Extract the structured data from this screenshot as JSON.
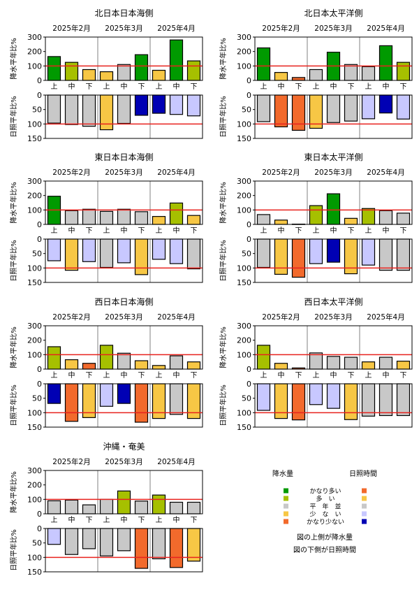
{
  "months": [
    "2025年2月",
    "2025年3月",
    "2025年4月"
  ],
  "dekads": [
    "上",
    "中",
    "下",
    "上",
    "中",
    "下",
    "上",
    "中",
    "下"
  ],
  "labels": {
    "precip_axis": "降水平年比%",
    "sun_axis": "日照平年比%"
  },
  "colors": {
    "reference_line": "#e8231e",
    "divider": "#808080",
    "bar_stroke": "#000000",
    "category_colors": {
      "much_above": "#009a00",
      "above": "#a6c000",
      "normal": "#c8c8c8",
      "below": "#f7c745",
      "much_below": "#f26a2c",
      "sun_above": "#c8c8ff",
      "sun_much_above": "#0000b4"
    }
  },
  "legend": {
    "precip_title": "降水量",
    "sun_title": "日照時間",
    "items": [
      {
        "label": "かなり多い",
        "precip_color": "#009a00",
        "sun_color": "#f26a2c"
      },
      {
        "label": "多　い",
        "precip_color": "#a6c000",
        "sun_color": "#f7c745"
      },
      {
        "label": "平　年　並",
        "precip_color": "#c8c8c8",
        "sun_color": "#c8c8c8"
      },
      {
        "label": "少　な　い",
        "precip_color": "#f7c745",
        "sun_color": "#c8c8ff"
      },
      {
        "label": "かなり少ない",
        "precip_color": "#f26a2c",
        "sun_color": "#0000b4"
      }
    ],
    "note_top": "図の上側が降水量",
    "note_bottom": "図の下側が日照時間"
  },
  "chart_data": [
    {
      "type": "bar",
      "title": "北日本日本海側",
      "precip": {
        "ylim": [
          0,
          300
        ],
        "ticks": [
          0,
          100,
          200,
          300
        ],
        "reference": 100,
        "values": [
          165,
          125,
          75,
          60,
          110,
          178,
          70,
          280,
          135
        ],
        "colors": [
          "#009a00",
          "#a6c000",
          "#f7c745",
          "#f7c745",
          "#c8c8c8",
          "#009a00",
          "#f7c745",
          "#009a00",
          "#a6c000"
        ]
      },
      "sun": {
        "ylim": [
          0,
          150
        ],
        "ticks": [
          0,
          50,
          100,
          150
        ],
        "reference": 100,
        "inverted": true,
        "values": [
          97,
          102,
          108,
          120,
          98,
          70,
          63,
          67,
          72
        ],
        "colors": [
          "#c8c8c8",
          "#c8c8c8",
          "#c8c8c8",
          "#f7c745",
          "#c8c8c8",
          "#0000b4",
          "#0000b4",
          "#c8c8ff",
          "#c8c8ff"
        ]
      }
    },
    {
      "type": "bar",
      "title": "北日本太平洋側",
      "precip": {
        "ylim": [
          0,
          300
        ],
        "ticks": [
          0,
          100,
          200,
          300
        ],
        "reference": 100,
        "values": [
          225,
          55,
          20,
          75,
          195,
          110,
          95,
          240,
          125
        ],
        "colors": [
          "#009a00",
          "#f7c745",
          "#f26a2c",
          "#c8c8c8",
          "#009a00",
          "#c8c8c8",
          "#c8c8c8",
          "#009a00",
          "#a6c000"
        ]
      },
      "sun": {
        "ylim": [
          0,
          150
        ],
        "ticks": [
          0,
          50,
          100,
          150
        ],
        "reference": 100,
        "inverted": true,
        "values": [
          92,
          110,
          122,
          115,
          95,
          90,
          82,
          62,
          83
        ],
        "colors": [
          "#c8c8c8",
          "#f26a2c",
          "#f26a2c",
          "#f7c745",
          "#c8c8c8",
          "#c8c8c8",
          "#c8c8ff",
          "#0000b4",
          "#c8c8ff"
        ]
      }
    },
    {
      "type": "bar",
      "title": "東日本日本海側",
      "precip": {
        "ylim": [
          0,
          300
        ],
        "ticks": [
          0,
          100,
          200,
          300
        ],
        "reference": 100,
        "values": [
          195,
          95,
          105,
          90,
          105,
          88,
          55,
          148,
          62
        ],
        "colors": [
          "#009a00",
          "#c8c8c8",
          "#c8c8c8",
          "#c8c8c8",
          "#c8c8c8",
          "#c8c8c8",
          "#f7c745",
          "#a6c000",
          "#f7c745"
        ]
      },
      "sun": {
        "ylim": [
          0,
          150
        ],
        "ticks": [
          0,
          50,
          100,
          150
        ],
        "reference": 100,
        "inverted": true,
        "values": [
          75,
          108,
          78,
          98,
          82,
          123,
          70,
          85,
          103
        ],
        "colors": [
          "#c8c8ff",
          "#f7c745",
          "#c8c8ff",
          "#c8c8c8",
          "#c8c8ff",
          "#f7c745",
          "#c8c8ff",
          "#c8c8ff",
          "#c8c8c8"
        ]
      }
    },
    {
      "type": "bar",
      "title": "東日本太平洋側",
      "precip": {
        "ylim": [
          0,
          300
        ],
        "ticks": [
          0,
          100,
          200,
          300
        ],
        "reference": 100,
        "values": [
          68,
          30,
          2,
          130,
          212,
          42,
          110,
          95,
          78
        ],
        "colors": [
          "#c8c8c8",
          "#f7c745",
          "#f26a2c",
          "#a6c000",
          "#009a00",
          "#f7c745",
          "#a6c000",
          "#c8c8c8",
          "#c8c8c8"
        ]
      },
      "sun": {
        "ylim": [
          0,
          150
        ],
        "ticks": [
          0,
          50,
          100,
          150
        ],
        "reference": 100,
        "inverted": true,
        "values": [
          98,
          122,
          132,
          85,
          80,
          120,
          90,
          108,
          108
        ],
        "colors": [
          "#c8c8c8",
          "#f7c745",
          "#f26a2c",
          "#c8c8ff",
          "#0000b4",
          "#f7c745",
          "#c8c8ff",
          "#c8c8c8",
          "#c8c8c8"
        ]
      }
    },
    {
      "type": "bar",
      "title": "西日本日本海側",
      "precip": {
        "ylim": [
          0,
          300
        ],
        "ticks": [
          0,
          100,
          200,
          300
        ],
        "reference": 100,
        "values": [
          155,
          65,
          40,
          165,
          110,
          58,
          25,
          92,
          50
        ],
        "colors": [
          "#a6c000",
          "#f7c745",
          "#f26a2c",
          "#a6c000",
          "#c8c8c8",
          "#f7c745",
          "#f7c745",
          "#c8c8c8",
          "#f7c745"
        ]
      },
      "sun": {
        "ylim": [
          0,
          150
        ],
        "ticks": [
          0,
          50,
          100,
          150
        ],
        "reference": 100,
        "inverted": true,
        "values": [
          68,
          130,
          117,
          78,
          68,
          133,
          120,
          106,
          120
        ],
        "colors": [
          "#0000b4",
          "#f26a2c",
          "#f7c745",
          "#c8c8ff",
          "#0000b4",
          "#f26a2c",
          "#f7c745",
          "#c8c8c8",
          "#f7c745"
        ]
      }
    },
    {
      "type": "bar",
      "title": "西日本太平洋側",
      "precip": {
        "ylim": [
          0,
          300
        ],
        "ticks": [
          0,
          100,
          200,
          300
        ],
        "reference": 100,
        "values": [
          165,
          40,
          8,
          112,
          88,
          82,
          50,
          82,
          55
        ],
        "colors": [
          "#a6c000",
          "#f7c745",
          "#f26a2c",
          "#c8c8c8",
          "#c8c8c8",
          "#c8c8c8",
          "#f7c745",
          "#c8c8c8",
          "#f7c745"
        ]
      },
      "sun": {
        "ylim": [
          0,
          150
        ],
        "ticks": [
          0,
          50,
          100,
          150
        ],
        "reference": 100,
        "inverted": true,
        "values": [
          92,
          120,
          125,
          72,
          85,
          124,
          112,
          110,
          110
        ],
        "colors": [
          "#c8c8ff",
          "#f7c745",
          "#f26a2c",
          "#c8c8ff",
          "#c8c8ff",
          "#f7c745",
          "#c8c8c8",
          "#c8c8c8",
          "#c8c8c8"
        ]
      }
    },
    {
      "type": "bar",
      "title": "沖縄・奄美",
      "precip": {
        "ylim": [
          0,
          300
        ],
        "ticks": [
          0,
          100,
          200,
          300
        ],
        "reference": 100,
        "values": [
          90,
          95,
          62,
          100,
          158,
          88,
          130,
          80,
          80
        ],
        "colors": [
          "#c8c8c8",
          "#c8c8c8",
          "#c8c8c8",
          "#c8c8c8",
          "#a6c000",
          "#c8c8c8",
          "#a6c000",
          "#c8c8c8",
          "#c8c8c8"
        ]
      },
      "sun": {
        "ylim": [
          0,
          150
        ],
        "ticks": [
          0,
          50,
          100,
          150
        ],
        "reference": 100,
        "inverted": true,
        "values": [
          55,
          90,
          70,
          95,
          77,
          138,
          105,
          135,
          113
        ],
        "colors": [
          "#c8c8ff",
          "#c8c8c8",
          "#c8c8c8",
          "#c8c8c8",
          "#c8c8c8",
          "#f26a2c",
          "#c8c8c8",
          "#f26a2c",
          "#f7c745"
        ]
      }
    }
  ]
}
